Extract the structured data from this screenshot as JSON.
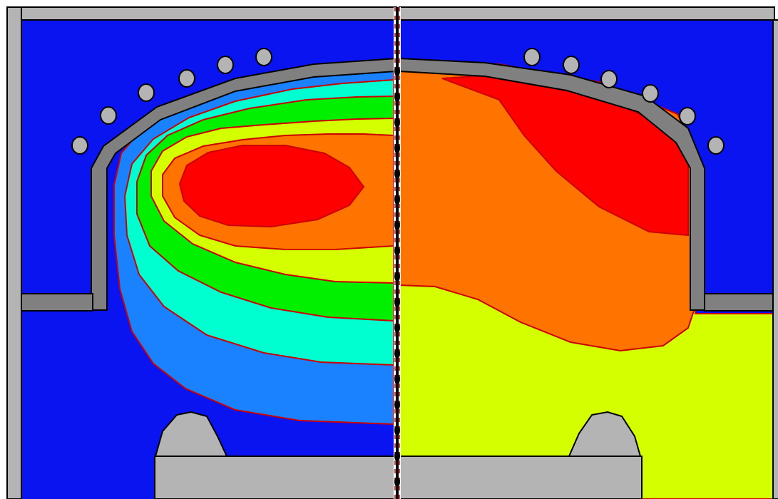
{
  "figure": {
    "panels": [
      "left-half",
      "right-half"
    ],
    "colors": {
      "background_blue": "#0a14f0",
      "steel_gray": "#b4b4b4",
      "dark_gray": "#808080",
      "outline": "#000000",
      "red": "#ff0000",
      "orange": "#ff7300",
      "yellow_green": "#d4ff00",
      "green": "#00f000",
      "cyan": "#00ffd0",
      "light_blue": "#1a82ff",
      "contour_line": "#cc0000",
      "bolt_fill": "#b4b4b4"
    },
    "layers_left": [
      "light_blue",
      "cyan",
      "green",
      "yellow_green",
      "orange",
      "red"
    ],
    "layers_right": [
      "yellow_green",
      "orange",
      "red"
    ],
    "left_bolts": 6,
    "right_bolts": 6
  }
}
